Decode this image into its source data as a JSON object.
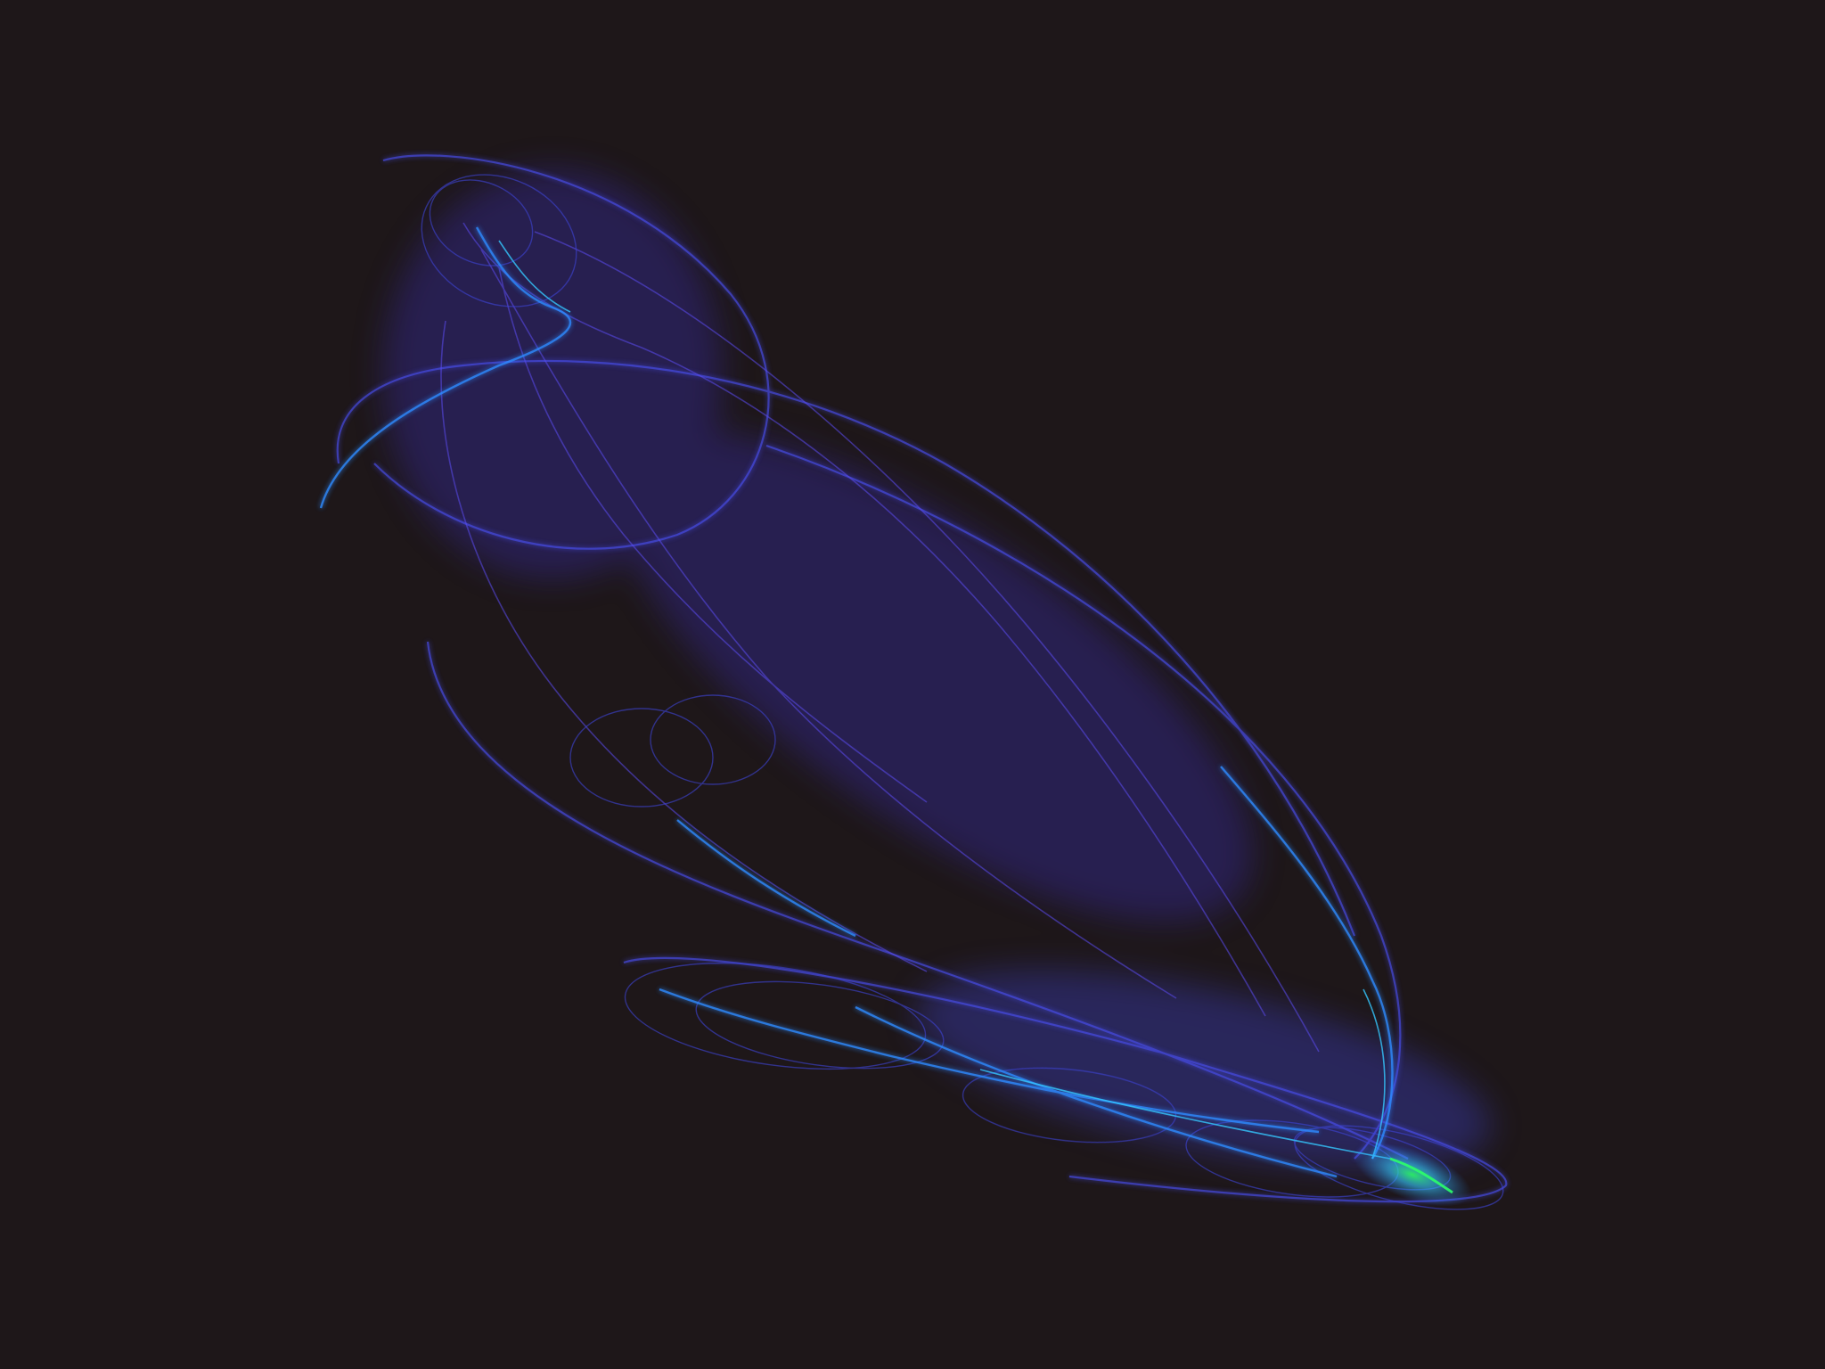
{
  "artwork": {
    "background_color": "#1e1719",
    "palette": {
      "deep": "#3a2fb8",
      "mid": "#4a4ff0",
      "bright": "#2f8bff",
      "cyan": "#35c8ff",
      "green": "#2cff6a"
    }
  }
}
